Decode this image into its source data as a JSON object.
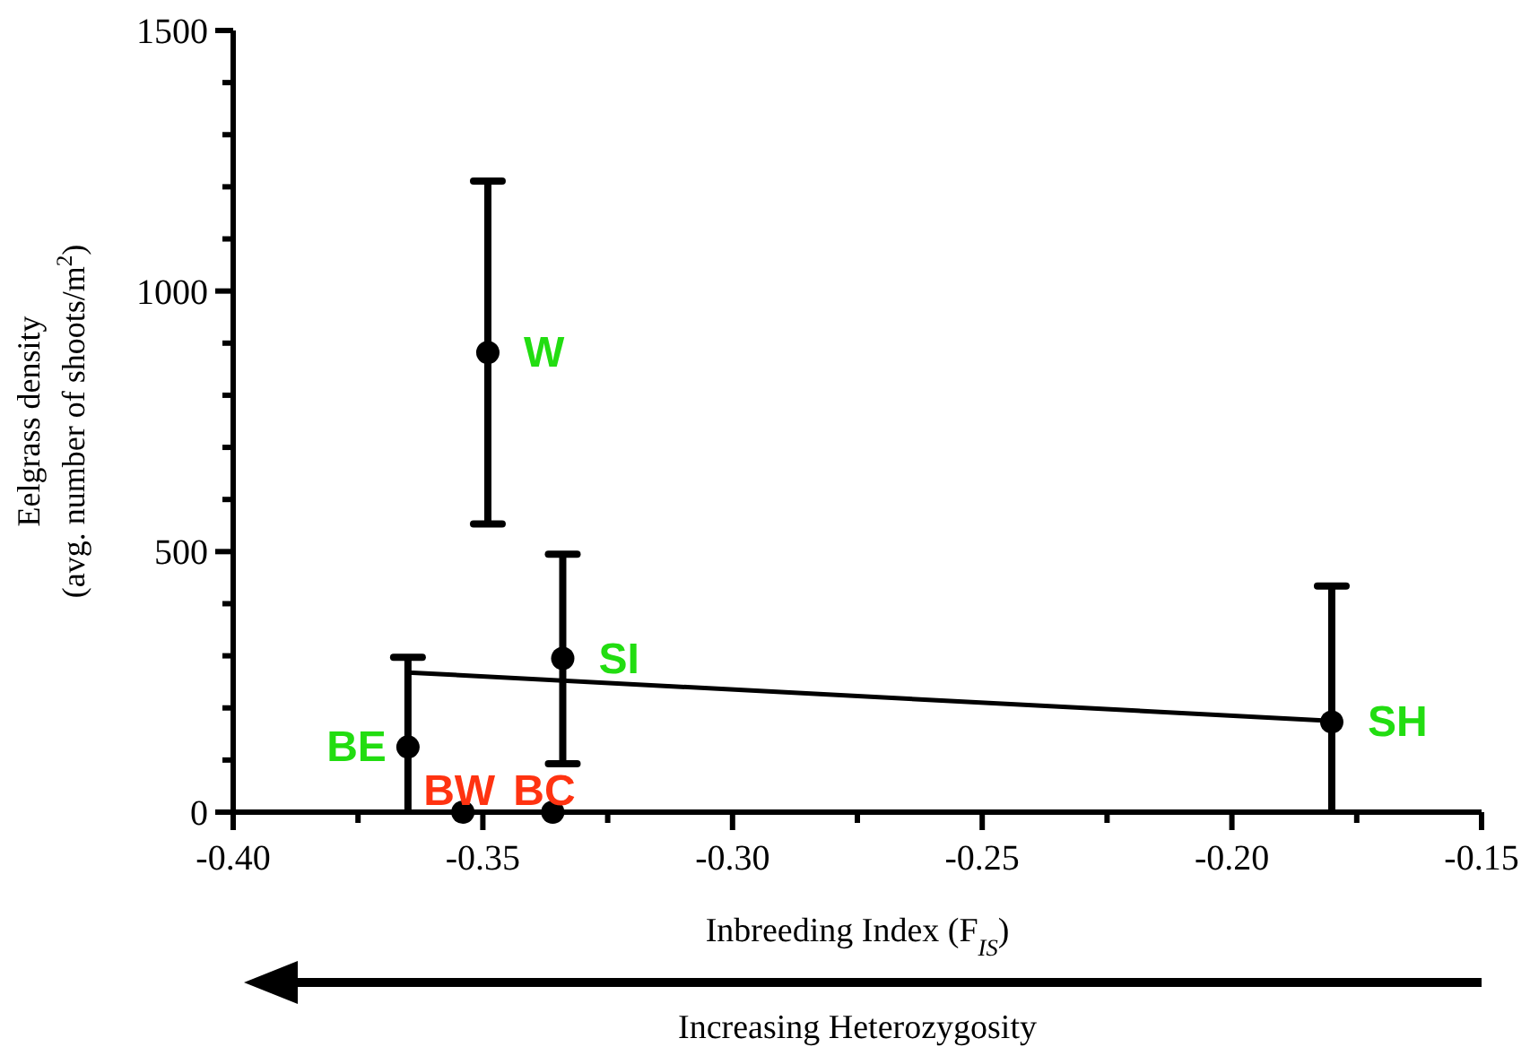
{
  "chart_data": {
    "type": "scatter",
    "xlabel": "Inbreeding Index (F$_{IS}$)",
    "ylabel": "Eelgrass density\n(avg. number of shoots/m$^{2}$)",
    "xlim": [
      -0.4,
      -0.15
    ],
    "xticks": [
      {
        "value": -0.4,
        "label": "-0.40"
      },
      {
        "value": -0.375,
        "label": null
      },
      {
        "value": -0.35,
        "label": "-0.35"
      },
      {
        "value": -0.325,
        "label": null
      },
      {
        "value": -0.3,
        "label": "-0.30"
      },
      {
        "value": -0.275,
        "label": null
      },
      {
        "value": -0.25,
        "label": "-0.25"
      },
      {
        "value": -0.225,
        "label": null
      },
      {
        "value": -0.2,
        "label": "-0.20"
      },
      {
        "value": -0.175,
        "label": null
      },
      {
        "value": -0.15,
        "label": "-0.15"
      }
    ],
    "ylim": [
      0,
      1500
    ],
    "yticks": [
      0,
      {
        "value": 100,
        "label": null
      },
      {
        "value": 200,
        "label": null
      },
      {
        "value": 300,
        "label": null
      },
      {
        "value": 400,
        "label": null
      },
      500,
      {
        "value": 600,
        "label": null
      },
      {
        "value": 700,
        "label": null
      },
      {
        "value": 800,
        "label": null
      },
      {
        "value": 900,
        "label": null
      },
      1000,
      {
        "value": 1100,
        "label": null
      },
      {
        "value": 1200,
        "label": null
      },
      {
        "value": 1300,
        "label": null
      },
      {
        "value": 1400,
        "label": null
      },
      1500
    ],
    "grid": false,
    "series": [
      {
        "color": "#000000",
        "marker": "circle",
        "x": [
          -0.349,
          -0.334,
          -0.18,
          -0.365,
          -0.354,
          -0.336
        ],
        "values": [
          882,
          295,
          173,
          125,
          0,
          0
        ],
        "errors": [
          [
            553,
            1211
          ],
          [
            93,
            495
          ],
          [
            0,
            434
          ],
          [
            0,
            297
          ],
          null,
          null
        ]
      },
      {
        "type": "line",
        "color": "#000000",
        "line_style": "solid",
        "x": [
          -0.365,
          -0.18
        ],
        "values": [
          268,
          175
        ]
      }
    ],
    "annotations": [
      {
        "text": "W",
        "x": -0.349,
        "y": 882
      },
      {
        "text": "SI",
        "x": -0.334,
        "y": 295
      },
      {
        "text": "SH",
        "x": -0.18,
        "y": 173
      },
      {
        "text": "BE",
        "x": -0.365,
        "y": 125
      },
      {
        "text": "BW",
        "x": -0.354,
        "y": 0
      },
      {
        "text": "BC",
        "x": -0.336,
        "y": 0
      },
      "Increasing Heterozygosity"
    ]
  }
}
